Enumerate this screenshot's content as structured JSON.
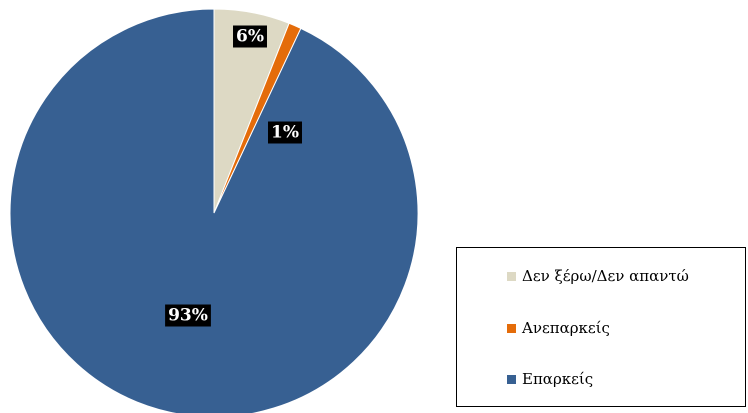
{
  "chart_data": {
    "type": "pie",
    "start_angle_deg": 0,
    "direction": "clockwise",
    "slices": [
      {
        "label": "Δεν ξέρω/Δεν απαντώ",
        "value": 6,
        "display": "6%",
        "color": "#DDD9C4"
      },
      {
        "label": "Ανεπαρκείς",
        "value": 1,
        "display": "1%",
        "color": "#E46C0A"
      },
      {
        "label": "Επαρκείς",
        "value": 93,
        "display": "93%",
        "color": "#376092"
      }
    ],
    "legend_position": "bottom-right"
  }
}
